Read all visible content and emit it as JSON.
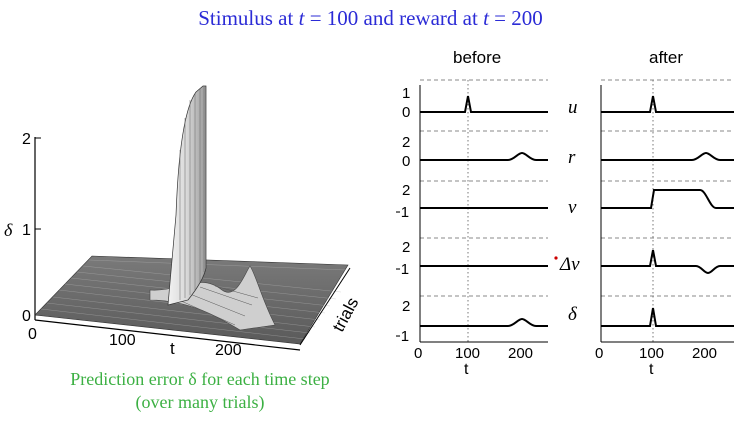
{
  "title": {
    "prefix": "Stimulus at",
    "var1": "t",
    "middle": "= 100 and reward at",
    "var2": "t",
    "suffix": "= 200"
  },
  "caption": {
    "line1": "Prediction error δ for each time step",
    "line2": "(over many trials)"
  },
  "surface": {
    "z_axis_label": "δ",
    "z_ticks": [
      "0",
      "1",
      "2"
    ],
    "t_ticks": [
      "0",
      "100",
      "200"
    ],
    "t_label": "t",
    "trials_label": "trials"
  },
  "panels": {
    "before_title": "before",
    "after_title": "after",
    "x_ticks": [
      "0",
      "100",
      "200"
    ],
    "x_label": "t",
    "rows": [
      {
        "label": "u",
        "ticks": [
          "1",
          "0"
        ]
      },
      {
        "label": "r",
        "ticks": [
          "2",
          "0"
        ]
      },
      {
        "label": "v",
        "ticks": [
          "2",
          "−1"
        ]
      },
      {
        "label": "Δv",
        "ticks": [
          "2",
          "−1"
        ]
      },
      {
        "label": "δ",
        "ticks": [
          "2",
          "−1"
        ]
      }
    ]
  },
  "colors": {
    "title": "#2b2bd6",
    "caption": "#3cb043",
    "marker": "#cc0000"
  }
}
